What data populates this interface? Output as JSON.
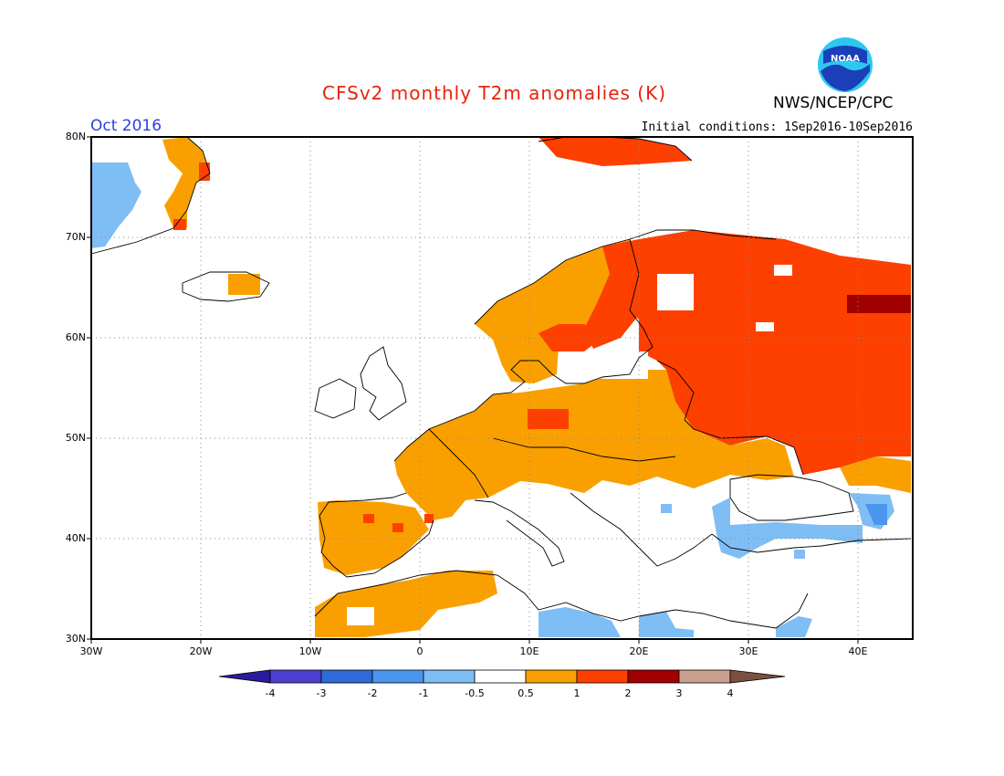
{
  "header": {
    "title": "CFSv2 monthly T2m anomalies (K)",
    "period": "Oct 2016",
    "initial_conditions": "Initial conditions: 1Sep2016-10Sep2016",
    "agency": "NWS/NCEP/CPC",
    "logo_text": "NOAA"
  },
  "map": {
    "lat_labels": [
      "80N",
      "70N",
      "60N",
      "50N",
      "40N",
      "30N"
    ],
    "lon_labels": [
      "30W",
      "20W",
      "10W",
      "0",
      "10E",
      "20E",
      "30E",
      "40E"
    ],
    "gridlines": true
  },
  "colorbar": {
    "labels": [
      "-4",
      "-3",
      "-2",
      "-1",
      "-0.5",
      "0.5",
      "1",
      "2",
      "3",
      "4"
    ],
    "colors": [
      "#2a1a9e",
      "#4e3ed2",
      "#2f6bd8",
      "#4a96ee",
      "#7fbdf5",
      "#ffffff",
      "#f9a000",
      "#fd3f00",
      "#a00000",
      "#c9a090",
      "#7a5040"
    ]
  },
  "colors": {
    "title": "#e8220a",
    "period": "#2b3fe0",
    "anom_0_5_to_1": "#f9a000",
    "anom_1_to_2": "#fd3f00",
    "anom_2_to_3": "#a00000",
    "anom_neg_0_5_to_neg_1": "#7fbdf5",
    "anom_neg_1_to_neg_2": "#4a96ee"
  }
}
